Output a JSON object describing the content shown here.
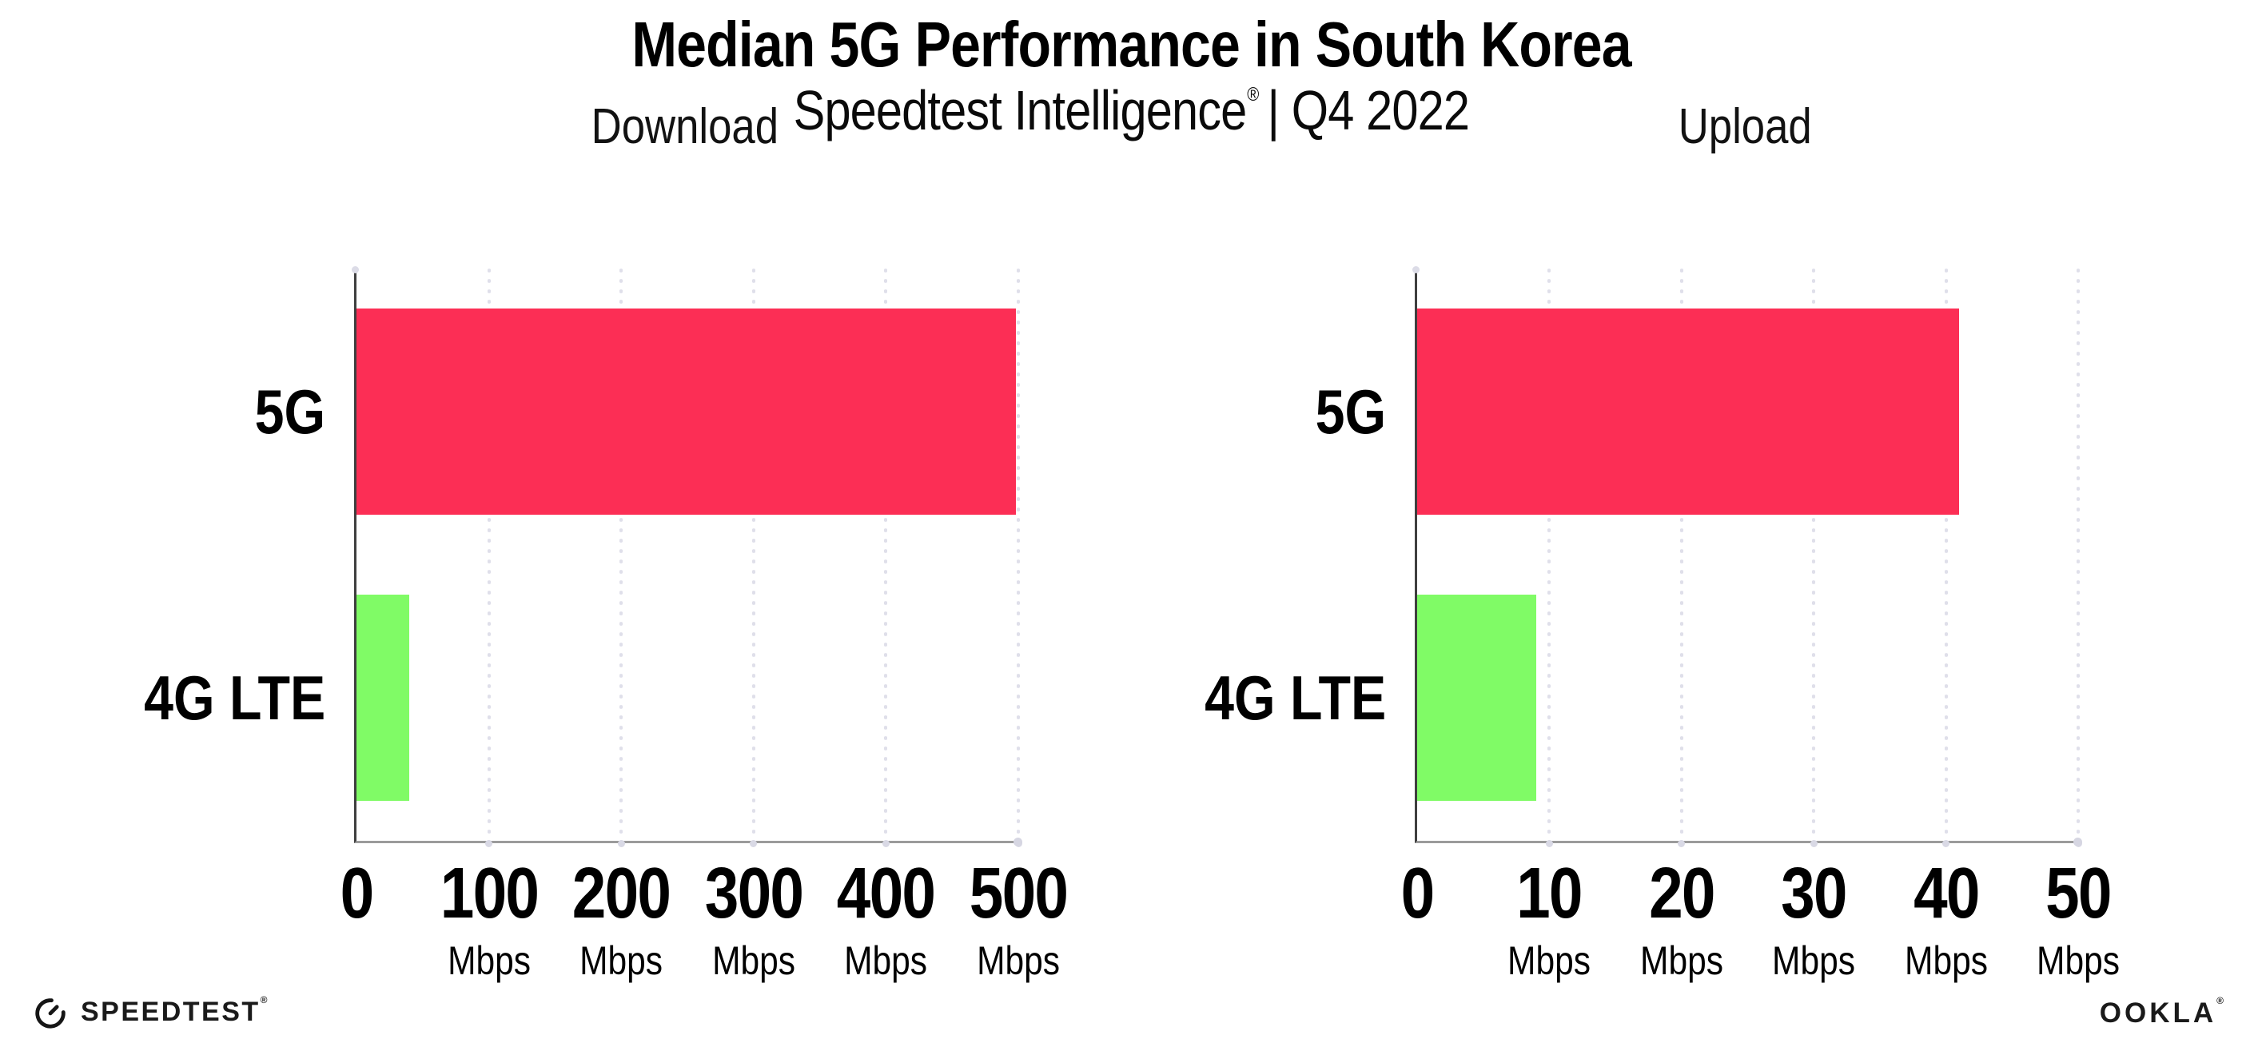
{
  "header": {
    "title": "Median 5G Performance in South Korea",
    "subtitle_brand": "Speedtest Intelligence",
    "subtitle_regmark": "®",
    "subtitle_rest": "| Q4 2022"
  },
  "footer": {
    "speedtest_icon": "speedtest-gauge-icon",
    "speedtest_label": "SPEEDTEST",
    "speedtest_regmark": "®",
    "ookla_label": "OOKLA",
    "ookla_regmark": "®"
  },
  "colors": {
    "bar_5g": "#FC2E55",
    "bar_4g_lte": "#80FB66",
    "gridline_dots": "#DFDFEA",
    "y_axis_line": "#3F3F3F",
    "x_axis_line": "#9B9B9B",
    "text": "#000000"
  },
  "chart_data": [
    {
      "type": "bar",
      "orientation": "horizontal",
      "title": "Download",
      "unit": "Mbps",
      "categories": [
        "5G",
        "4G LTE"
      ],
      "values": [
        498,
        40
      ],
      "colors": [
        "#FC2E55",
        "#80FB66"
      ],
      "xlim": [
        0,
        500
      ],
      "xticks": [
        0,
        100,
        200,
        300,
        400,
        500
      ],
      "grid": "dotted-vertical",
      "legend": "none"
    },
    {
      "type": "bar",
      "orientation": "horizontal",
      "title": "Upload",
      "unit": "Mbps",
      "categories": [
        "5G",
        "4G LTE"
      ],
      "values": [
        41,
        9
      ],
      "colors": [
        "#FC2E55",
        "#80FB66"
      ],
      "xlim": [
        0,
        50
      ],
      "xticks": [
        0,
        10,
        20,
        30,
        40,
        50
      ],
      "grid": "dotted-vertical",
      "legend": "none"
    }
  ]
}
